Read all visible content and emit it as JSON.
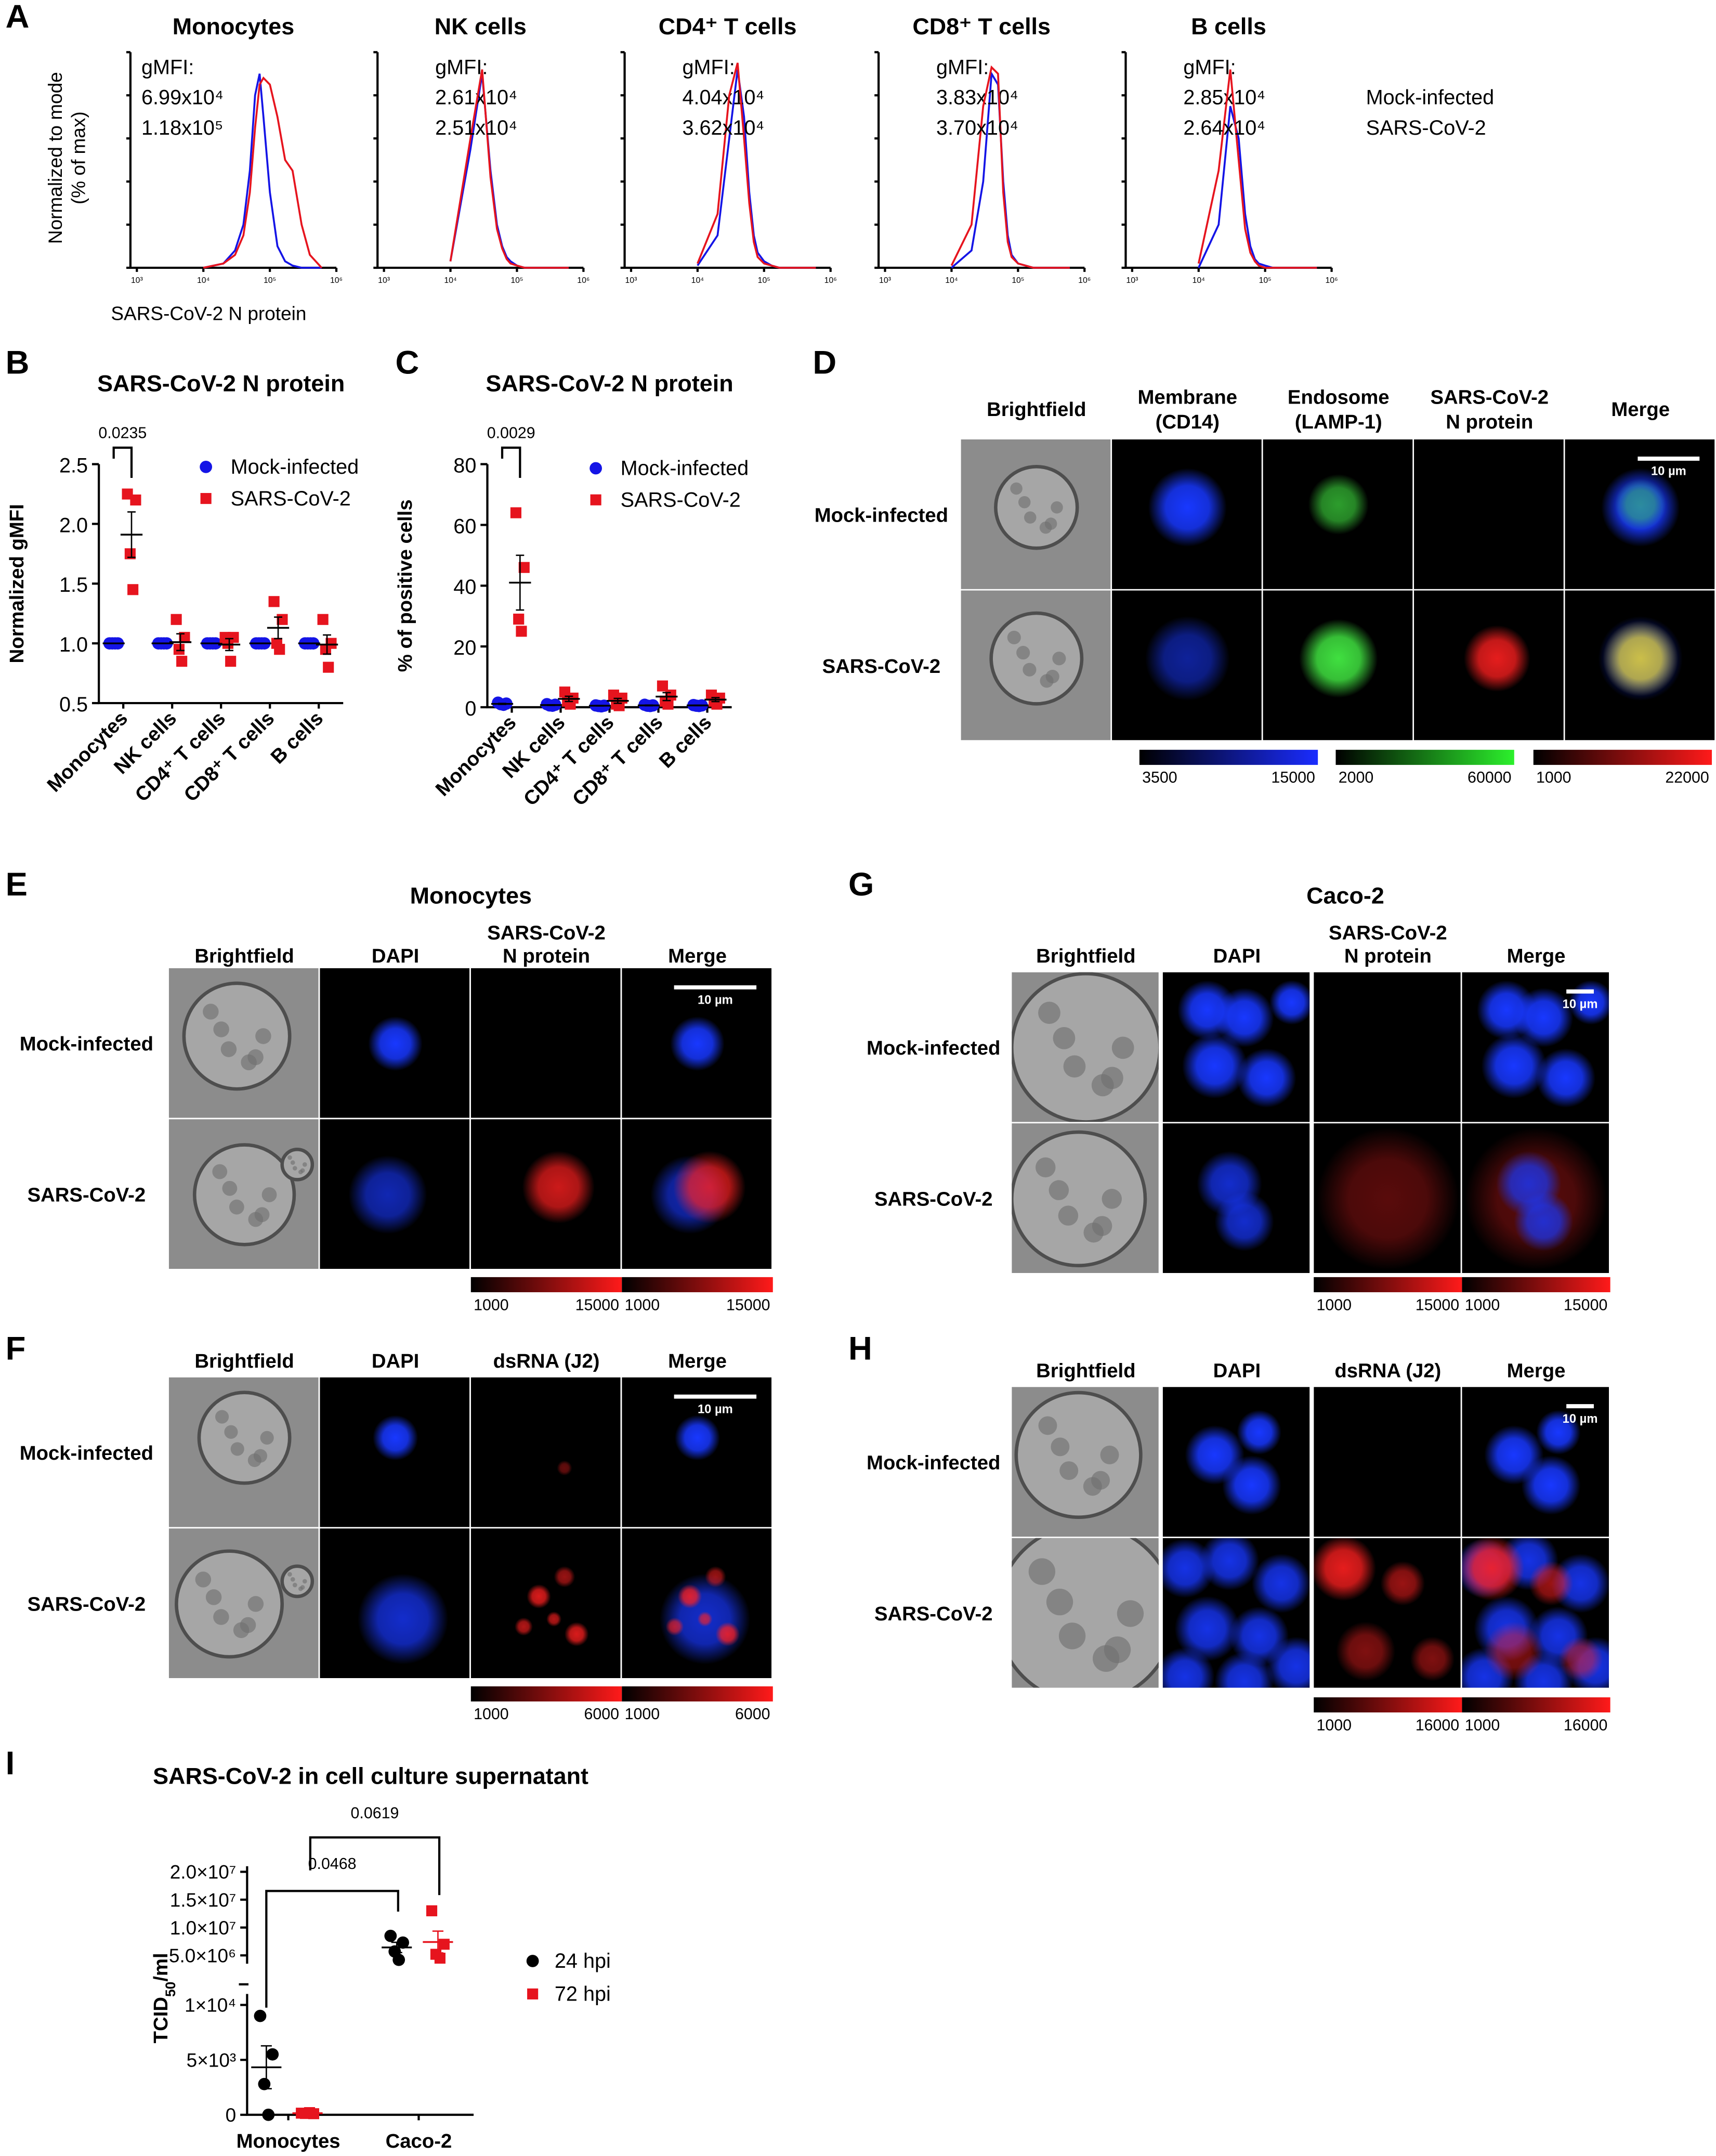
{
  "panels": {
    "A": {
      "label": "A",
      "y_label": [
        "Normalized to mode",
        "(% of max)"
      ],
      "x_label": "SARS-CoV-2 N protein",
      "gmfi_title": "gMFI:",
      "xscale": "log",
      "xlim": [
        800,
        1000000
      ],
      "xticks": [
        {
          "value": 1000,
          "label": "10³"
        },
        {
          "value": 10000,
          "label": "10⁴"
        },
        {
          "value": 100000,
          "label": "10⁵"
        },
        {
          "value": 1000000,
          "label": "10⁶"
        }
      ],
      "ylim": [
        0,
        100
      ],
      "legend": [
        {
          "name": "Mock-infected",
          "color": "#1414e6"
        },
        {
          "name": "SARS-CoV-2",
          "color": "#e6141e"
        }
      ],
      "x": [
        10000,
        20000,
        30000,
        40000,
        50000,
        60000,
        70000,
        80000,
        100000,
        130000,
        170000,
        220000,
        300000,
        400000,
        600000
      ],
      "charts": [
        {
          "title": "Monocytes",
          "series": [
            {
              "values": [
                0,
                2,
                8,
                20,
                45,
                80,
                90,
                70,
                35,
                10,
                3,
                1,
                0,
                0,
                0
              ],
              "gmfi": "6.99x10⁴"
            },
            {
              "values": [
                0,
                2,
                6,
                15,
                35,
                65,
                85,
                88,
                85,
                70,
                50,
                45,
                20,
                6,
                0
              ],
              "gmfi": "1.18x10⁵"
            }
          ]
        },
        {
          "title": "NK cells",
          "series": [
            {
              "values": [
                3,
                55,
                90,
                45,
                20,
                10,
                5,
                3,
                1,
                0,
                0,
                0,
                0,
                0,
                0
              ],
              "gmfi": "2.61x10⁴"
            },
            {
              "values": [
                3,
                60,
                92,
                42,
                18,
                9,
                4,
                2,
                1,
                0,
                0,
                0,
                0,
                0,
                0
              ],
              "gmfi": "2.51x10⁴"
            }
          ]
        },
        {
          "title": "CD4⁺ T cells",
          "series": [
            {
              "values": [
                1,
                15,
                60,
                92,
                70,
                35,
                15,
                7,
                3,
                1,
                0,
                0,
                0,
                0,
                0
              ],
              "gmfi": "4.04x10⁴"
            },
            {
              "values": [
                2,
                25,
                80,
                95,
                60,
                30,
                12,
                5,
                2,
                1,
                0,
                0,
                0,
                0,
                0
              ],
              "gmfi": "3.62x10⁴"
            }
          ]
        },
        {
          "title": "CD8⁺ T cells",
          "series": [
            {
              "values": [
                0,
                8,
                40,
                90,
                85,
                40,
                15,
                6,
                2,
                1,
                0,
                0,
                0,
                0,
                0
              ],
              "gmfi": "3.83x10⁴"
            },
            {
              "values": [
                1,
                20,
                75,
                93,
                90,
                35,
                12,
                5,
                2,
                1,
                0,
                0,
                0,
                0,
                0
              ],
              "gmfi": "3.70x10⁴"
            }
          ]
        },
        {
          "title": "B cells",
          "series": [
            {
              "values": [
                0,
                20,
                75,
                60,
                25,
                10,
                4,
                2,
                1,
                0,
                0,
                0,
                0,
                0,
                0
              ],
              "gmfi": "2.85x10⁴"
            },
            {
              "values": [
                2,
                45,
                92,
                50,
                18,
                7,
                3,
                1,
                0,
                0,
                0,
                0,
                0,
                0,
                0
              ],
              "gmfi": "2.64x10⁴"
            }
          ]
        }
      ]
    },
    "B": {
      "label": "B",
      "title": "SARS-CoV-2 N protein",
      "y_label": "Normalized gMFI",
      "ylim": [
        0.5,
        2.5
      ],
      "yticks": [
        0.5,
        {
          "value": 1,
          "label": "1.0"
        },
        1.5,
        {
          "value": 2,
          "label": "2.0"
        },
        2.5
      ],
      "categories": [
        "Monocytes",
        "NK cells",
        "CD4⁺ T cells",
        "CD8⁺ T cells",
        "B cells"
      ],
      "series": [
        {
          "name": "Mock-infected",
          "color": "#1414e6",
          "marker": "circle",
          "values": [
            [
              1,
              1,
              1,
              1
            ],
            [
              1,
              1,
              1,
              1
            ],
            [
              1,
              1,
              1,
              1
            ],
            [
              1,
              1,
              1,
              1
            ],
            [
              1,
              1,
              1,
              1
            ]
          ],
          "mean": [
            1,
            1,
            1,
            1,
            1
          ],
          "sem": [
            0,
            0,
            0,
            0,
            0
          ]
        },
        {
          "name": "SARS-CoV-2",
          "color": "#e6141e",
          "marker": "square",
          "values": [
            [
              2.25,
              2.2,
              1.75,
              1.45
            ],
            [
              1.2,
              1.05,
              0.95,
              0.85
            ],
            [
              1.05,
              1.05,
              1.0,
              0.85
            ],
            [
              1.35,
              1.2,
              1.0,
              0.95
            ],
            [
              1.2,
              1.0,
              0.95,
              0.8
            ]
          ],
          "mean": [
            1.91,
            1.01,
            0.99,
            1.13,
            0.99
          ],
          "sem": [
            0.19,
            0.07,
            0.05,
            0.09,
            0.08
          ]
        }
      ],
      "p_value": "0.0235"
    },
    "C": {
      "label": "C",
      "title": "SARS-CoV-2 N protein",
      "y_label": "% of positive cells",
      "ylim": [
        0,
        80
      ],
      "yticks": [
        0,
        20,
        40,
        60,
        80
      ],
      "categories": [
        "Monocytes",
        "NK cells",
        "CD4⁺ T cells",
        "CD8⁺ T cells",
        "B cells"
      ],
      "series": [
        {
          "name": "Mock-infected",
          "color": "#1414e6",
          "marker": "circle",
          "values": [
            [
              1.5,
              1.2,
              1,
              0.8
            ],
            [
              1,
              0.8,
              0.6,
              0.5
            ],
            [
              0.6,
              0.5,
              0.4,
              0.3
            ],
            [
              0.8,
              0.6,
              0.5,
              0.4
            ],
            [
              0.7,
              0.6,
              0.5,
              0.4
            ]
          ],
          "mean": [
            1.1,
            0.7,
            0.5,
            0.6,
            0.6
          ],
          "sem": [
            0.15,
            0.1,
            0.06,
            0.09,
            0.06
          ]
        },
        {
          "name": "SARS-CoV-2",
          "color": "#e6141e",
          "marker": "square",
          "values": [
            [
              64,
              46,
              29,
              25
            ],
            [
              5,
              3,
              2,
              1
            ],
            [
              4,
              3,
              1,
              0.5
            ],
            [
              7,
              4,
              2,
              1
            ],
            [
              4,
              3,
              2,
              1
            ]
          ],
          "mean": [
            41,
            2.75,
            2.1,
            3.5,
            2.5
          ],
          "sem": [
            9.0,
            0.85,
            0.8,
            1.3,
            0.65
          ]
        }
      ],
      "p_value": "0.0029"
    },
    "D": {
      "label": "D",
      "columns": [
        [
          "Brightfield"
        ],
        [
          "Membrane",
          "(CD14)"
        ],
        [
          "Endosome",
          "(LAMP-1)"
        ],
        [
          "SARS-CoV-2",
          "N protein"
        ],
        [
          "Merge"
        ]
      ],
      "rows": [
        "Mock-infected",
        "SARS-CoV-2"
      ],
      "scale_bar": "10 µm",
      "colorbars": [
        {
          "color": "#1a2cff",
          "range": [
            3500,
            15000
          ]
        },
        {
          "color": "#2cf02c",
          "range": [
            2000,
            60000
          ]
        },
        {
          "color": "#ff1a1a",
          "range": [
            1000,
            22000
          ]
        }
      ]
    },
    "E": {
      "label": "E",
      "title": "Monocytes",
      "columns": [
        [
          "Brightfield"
        ],
        [
          "DAPI"
        ],
        [
          "SARS-CoV-2",
          "N protein"
        ],
        [
          "Merge"
        ]
      ],
      "rows": [
        "Mock-infected",
        "SARS-CoV-2"
      ],
      "scale_bar": "10 µm",
      "colorbars": [
        {
          "color": "#ff1a1a",
          "range": [
            1000,
            15000
          ]
        },
        {
          "color": "#ff1a1a",
          "range": [
            1000,
            15000
          ]
        }
      ]
    },
    "F": {
      "label": "F",
      "columns": [
        [
          "Brightfield"
        ],
        [
          "DAPI"
        ],
        [
          "dsRNA (J2)"
        ],
        [
          "Merge"
        ]
      ],
      "rows": [
        "Mock-infected",
        "SARS-CoV-2"
      ],
      "scale_bar": "10 µm",
      "colorbars": [
        {
          "color": "#ff1a1a",
          "range": [
            1000,
            6000
          ]
        },
        {
          "color": "#ff1a1a",
          "range": [
            1000,
            6000
          ]
        }
      ]
    },
    "G": {
      "label": "G",
      "title": "Caco-2",
      "columns": [
        [
          "Brightfield"
        ],
        [
          "DAPI"
        ],
        [
          "SARS-CoV-2",
          "N protein"
        ],
        [
          "Merge"
        ]
      ],
      "rows": [
        "Mock-infected",
        "SARS-CoV-2"
      ],
      "scale_bar": "10 µm",
      "colorbars": [
        {
          "color": "#ff1a1a",
          "range": [
            1000,
            15000
          ]
        },
        {
          "color": "#ff1a1a",
          "range": [
            1000,
            15000
          ]
        }
      ]
    },
    "H": {
      "label": "H",
      "columns": [
        [
          "Brightfield"
        ],
        [
          "DAPI"
        ],
        [
          "dsRNA (J2)"
        ],
        [
          "Merge"
        ]
      ],
      "rows": [
        "Mock-infected",
        "SARS-CoV-2"
      ],
      "scale_bar": "10 µm",
      "colorbars": [
        {
          "color": "#ff1a1a",
          "range": [
            1000,
            16000
          ]
        },
        {
          "color": "#ff1a1a",
          "range": [
            1000,
            16000
          ]
        }
      ]
    },
    "I": {
      "label": "I",
      "title": "SARS-CoV-2 in cell culture supernatant",
      "y_label": [
        "TCID",
        "50",
        "/ml"
      ],
      "ylim": [
        0,
        11000
      ],
      "yticks": [
        0,
        {
          "value": 5000,
          "label": "5×10³"
        },
        {
          "value": 10000,
          "label": "1×10⁴"
        }
      ],
      "ylim_upper": [
        3500000,
        21000000
      ],
      "yticks_upper": [
        {
          "value": 5000000,
          "label": "5.0×10⁶"
        },
        {
          "value": 10000000,
          "label": "1.0×10⁷"
        },
        {
          "value": 15000000,
          "label": "1.5×10⁷"
        },
        {
          "value": 20000000,
          "label": "2.0×10⁷"
        }
      ],
      "categories": [
        "Monocytes",
        "Caco-2"
      ],
      "series": [
        {
          "name": "24 hpi",
          "color": "#000000",
          "marker": "circle",
          "values": [
            [
              9000,
              5500,
              2800,
              0
            ],
            [
              8500000,
              7300000,
              5700000,
              4200000
            ]
          ],
          "mean": [
            4325,
            6425000
          ],
          "sem": [
            1950,
            920000
          ]
        },
        {
          "name": "72 hpi",
          "color": "#e6141e",
          "marker": "square",
          "values": [
            [
              150,
              100,
              120,
              200
            ],
            [
              13000000,
              7000000,
              5200000,
              4500000
            ]
          ],
          "mean": [
            143,
            7400000
          ],
          "sem": [
            20,
            1950000
          ]
        }
      ],
      "annotations": [
        "0.0468",
        "0.0619"
      ]
    }
  }
}
